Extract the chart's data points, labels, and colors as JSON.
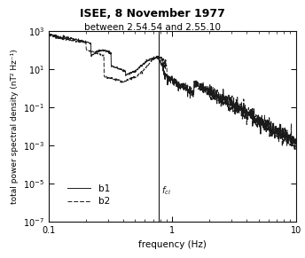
{
  "title": "ISEE, 8 November 1977",
  "subtitle": "between 2.54.54 and 2.55.10",
  "xlabel": "frequency (Hz)",
  "ylabel": "total power spectral density (nT² Hz⁻¹)",
  "xlim": [
    0.1,
    10
  ],
  "ylim": [
    1e-07,
    1000.0
  ],
  "fci_x": 0.77,
  "legend_labels": [
    "b1",
    "b2"
  ],
  "line_color": "#1a1a1a",
  "background_color": "#ffffff"
}
